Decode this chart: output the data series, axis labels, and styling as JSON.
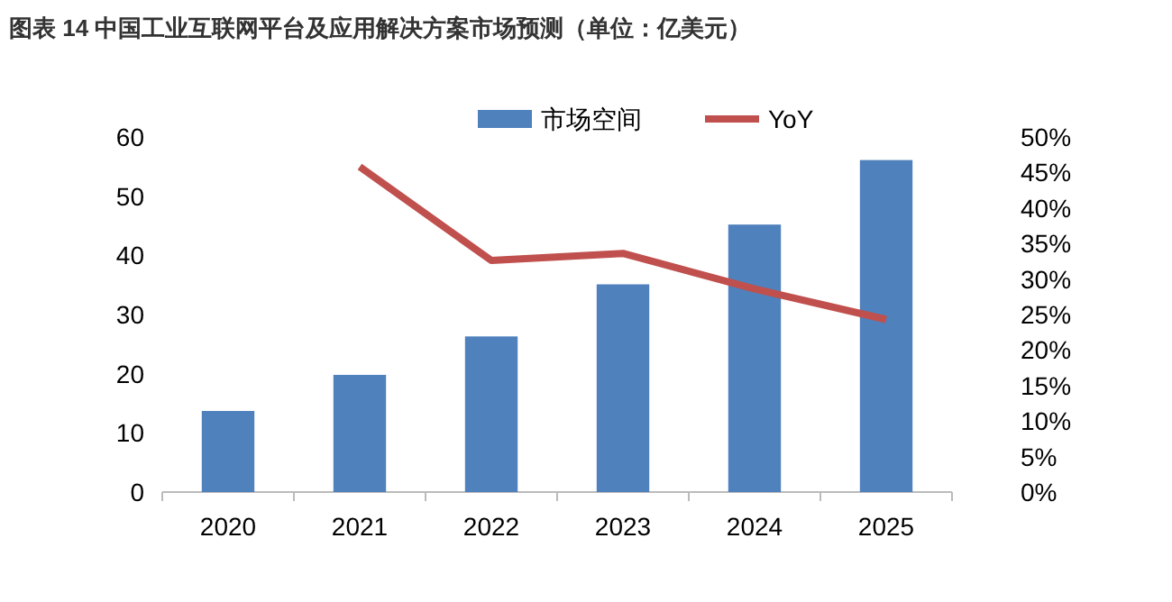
{
  "chart_data": {
    "type": "bar",
    "title": "图表 14 中国工业互联网平台及应用解决方案市场预测（单位：亿美元）",
    "categories": [
      "2020",
      "2021",
      "2022",
      "2023",
      "2024",
      "2025"
    ],
    "series": [
      {
        "name": "市场空间",
        "color": "#4f81bd",
        "values": [
          13.7,
          19.8,
          26.3,
          35.1,
          45.2,
          56.1
        ]
      },
      {
        "name": "YoY",
        "type": "line",
        "axis": "y2",
        "color": "#c0504d",
        "values": [
          null,
          45.8,
          32.6,
          33.6,
          28.6,
          24.3
        ]
      }
    ],
    "ylim": [
      0,
      60
    ],
    "yticks": [
      0,
      10,
      20,
      30,
      40,
      50,
      60
    ],
    "y2lim": [
      0,
      50
    ],
    "y2ticks": [
      {
        "value": 0,
        "label": "0%"
      },
      {
        "value": 5,
        "label": "5%"
      },
      {
        "value": 10,
        "label": "10%"
      },
      {
        "value": 15,
        "label": "15%"
      },
      {
        "value": 20,
        "label": "20%"
      },
      {
        "value": 25,
        "label": "25%"
      },
      {
        "value": 30,
        "label": "30%"
      },
      {
        "value": 35,
        "label": "35%"
      },
      {
        "value": 40,
        "label": "40%"
      },
      {
        "value": 45,
        "label": "45%"
      },
      {
        "value": 50,
        "label": "50%"
      }
    ],
    "legend": "top",
    "grid": false,
    "marker": "none"
  }
}
